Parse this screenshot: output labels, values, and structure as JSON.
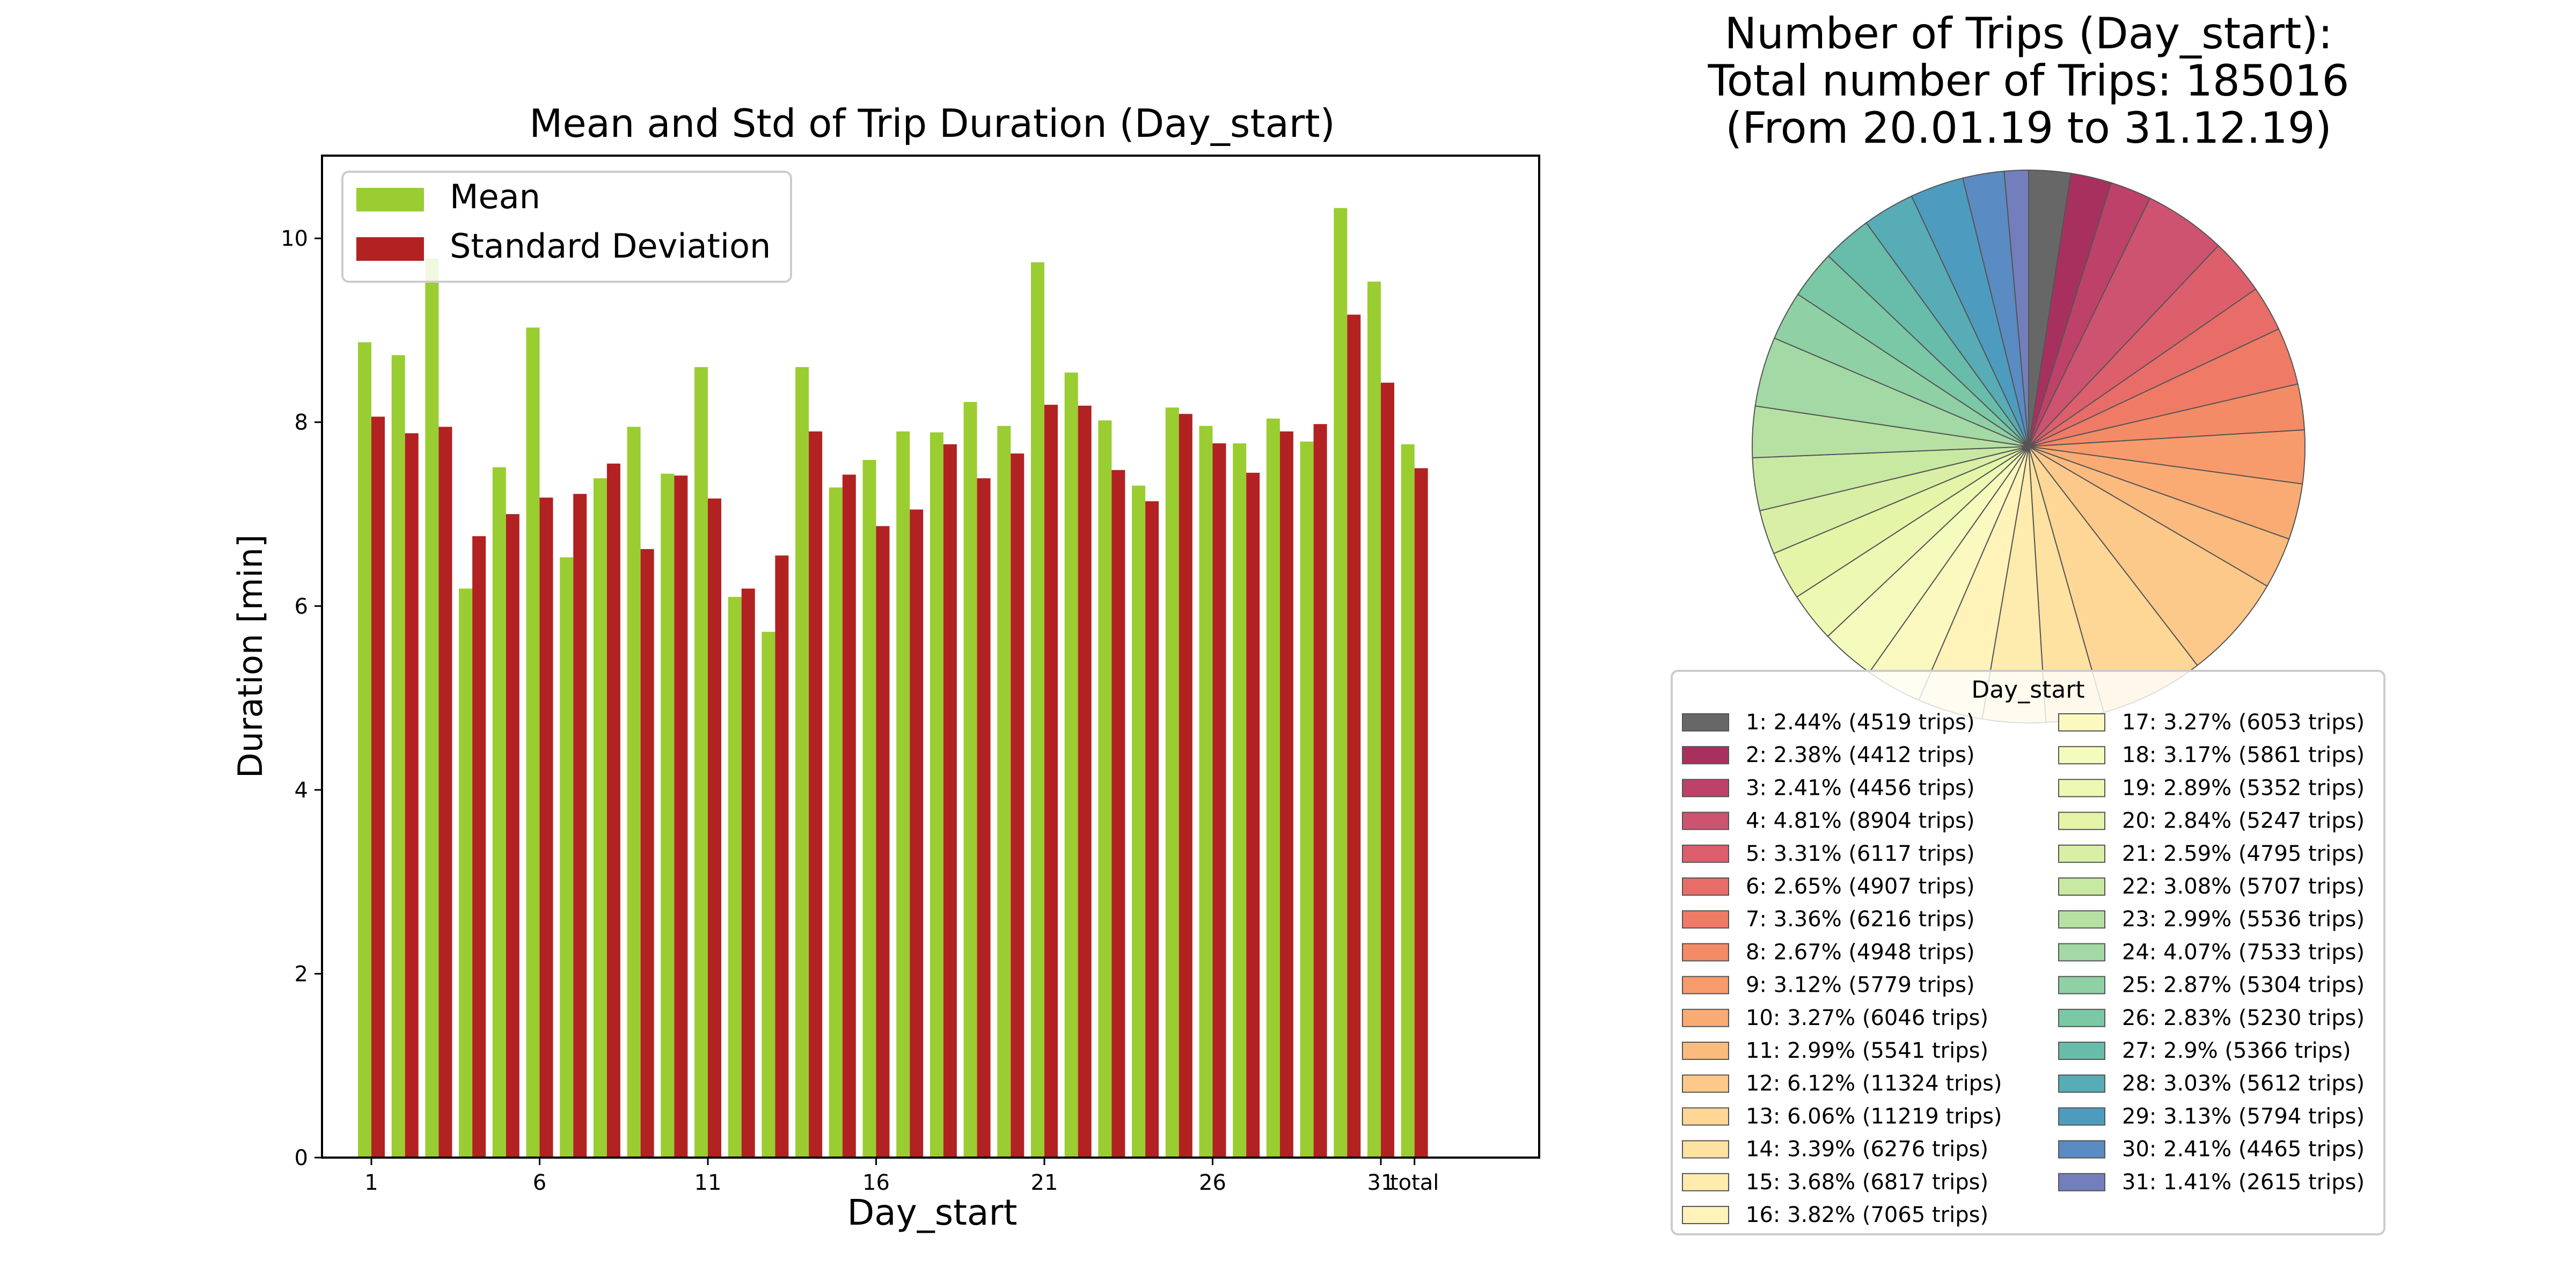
{
  "chart_data": [
    {
      "type": "bar",
      "title": "Mean and Std of Trip Duration (Day_start)",
      "xlabel": "Day_start",
      "ylabel": "Duration [min]",
      "ylim": [
        0,
        10.9
      ],
      "yticks": [
        "0",
        "2",
        "4",
        "6",
        "8",
        "10"
      ],
      "categories": [
        "1",
        "2",
        "3",
        "4",
        "5",
        "6",
        "7",
        "8",
        "9",
        "10",
        "11",
        "12",
        "13",
        "14",
        "15",
        "16",
        "17",
        "18",
        "19",
        "20",
        "21",
        "22",
        "23",
        "24",
        "25",
        "26",
        "27",
        "28",
        "29",
        "30",
        "31",
        "total"
      ],
      "xtick_labels": [
        "1",
        "6",
        "11",
        "16",
        "21",
        "26",
        "31",
        "total"
      ],
      "legend_position": "upper-left",
      "series": [
        {
          "name": "Mean",
          "color": "#9acd32",
          "values": [
            8.87,
            8.73,
            9.78,
            6.19,
            7.51,
            9.03,
            6.53,
            7.39,
            7.95,
            7.44,
            8.6,
            6.1,
            5.72,
            8.6,
            7.29,
            7.59,
            7.9,
            7.89,
            8.22,
            7.96,
            9.74,
            8.54,
            8.02,
            7.31,
            8.16,
            7.96,
            7.77,
            8.04,
            7.79,
            10.33,
            9.53,
            7.76
          ]
        },
        {
          "name": "Standard Deviation",
          "color": "#b22222",
          "values": [
            8.06,
            7.88,
            7.95,
            6.76,
            7.0,
            7.18,
            7.22,
            7.55,
            6.62,
            7.42,
            7.17,
            6.19,
            6.55,
            7.9,
            7.43,
            6.87,
            7.05,
            7.76,
            7.39,
            7.66,
            8.19,
            8.18,
            7.48,
            7.14,
            8.09,
            7.77,
            7.45,
            7.9,
            7.98,
            9.17,
            8.43,
            7.5
          ]
        }
      ],
      "grid": false
    },
    {
      "type": "pie",
      "title_lines": [
        "Number of Trips (Day_start):",
        "Total number of Trips: 185016",
        "(From 20.01.19 to 31.12.19)"
      ],
      "legend_title": "Day_start",
      "start_angle_deg": 90,
      "direction": "clockwise",
      "slices": [
        {
          "label": "1: 2.44% (4519 trips)",
          "value": 4519,
          "color": "#676767"
        },
        {
          "label": "2: 2.38% (4412 trips)",
          "value": 4412,
          "color": "#a8305f"
        },
        {
          "label": "3: 2.41% (4456 trips)",
          "value": 4456,
          "color": "#be4169"
        },
        {
          "label": "4: 4.81% (8904 trips)",
          "value": 8904,
          "color": "#cd5370"
        },
        {
          "label": "5: 3.31% (6117 trips)",
          "value": 6117,
          "color": "#dd5f6c"
        },
        {
          "label": "6: 2.65% (4907 trips)",
          "value": 4907,
          "color": "#e86d68"
        },
        {
          "label": "7: 3.36% (6216 trips)",
          "value": 6216,
          "color": "#ef7b66"
        },
        {
          "label": "8: 2.67% (4948 trips)",
          "value": 4948,
          "color": "#f38b67"
        },
        {
          "label": "9: 3.12% (5779 trips)",
          "value": 5779,
          "color": "#f79b6d"
        },
        {
          "label": "10: 3.27% (6046 trips)",
          "value": 6046,
          "color": "#faab74"
        },
        {
          "label": "11: 2.99% (5541 trips)",
          "value": 5541,
          "color": "#fcbb7e"
        },
        {
          "label": "12: 6.12% (11324 trips)",
          "value": 11324,
          "color": "#fdc98a"
        },
        {
          "label": "13: 6.06% (11219 trips)",
          "value": 11219,
          "color": "#fed796"
        },
        {
          "label": "14: 3.39% (6276 trips)",
          "value": 6276,
          "color": "#fee2a2"
        },
        {
          "label": "15: 3.68% (6817 trips)",
          "value": 6817,
          "color": "#feebae"
        },
        {
          "label": "16: 3.82% (7065 trips)",
          "value": 7065,
          "color": "#fff3ba"
        },
        {
          "label": "17: 3.27% (6053 trips)",
          "value": 6053,
          "color": "#fbf8c0"
        },
        {
          "label": "18: 3.17% (5861 trips)",
          "value": 5861,
          "color": "#f5fbbc"
        },
        {
          "label": "19: 2.89% (5352 trips)",
          "value": 5352,
          "color": "#edf8b2"
        },
        {
          "label": "20: 2.84% (5247 trips)",
          "value": 5247,
          "color": "#e5f5a8"
        },
        {
          "label": "21: 2.59% (4795 trips)",
          "value": 4795,
          "color": "#d9efa6"
        },
        {
          "label": "22: 3.08% (5707 trips)",
          "value": 5707,
          "color": "#c8e9a2"
        },
        {
          "label": "23: 2.99% (5536 trips)",
          "value": 5536,
          "color": "#b6e1a3"
        },
        {
          "label": "24: 4.07% (7533 trips)",
          "value": 7533,
          "color": "#a3d9a4"
        },
        {
          "label": "25: 2.87% (5304 trips)",
          "value": 5304,
          "color": "#8fd1a5"
        },
        {
          "label": "26: 2.83% (5230 trips)",
          "value": 5230,
          "color": "#7ac8a6"
        },
        {
          "label": "27: 2.9% (5366 trips)",
          "value": 5366,
          "color": "#68bcaa"
        },
        {
          "label": "28: 3.03% (5612 trips)",
          "value": 5612,
          "color": "#58acb5"
        },
        {
          "label": "29: 3.13% (5794 trips)",
          "value": 5794,
          "color": "#4d9cc0"
        },
        {
          "label": "30: 2.41% (4465 trips)",
          "value": 4465,
          "color": "#5a8bc2"
        },
        {
          "label": "31: 1.41% (2615 trips)",
          "value": 2615,
          "color": "#737ebc"
        }
      ]
    }
  ]
}
